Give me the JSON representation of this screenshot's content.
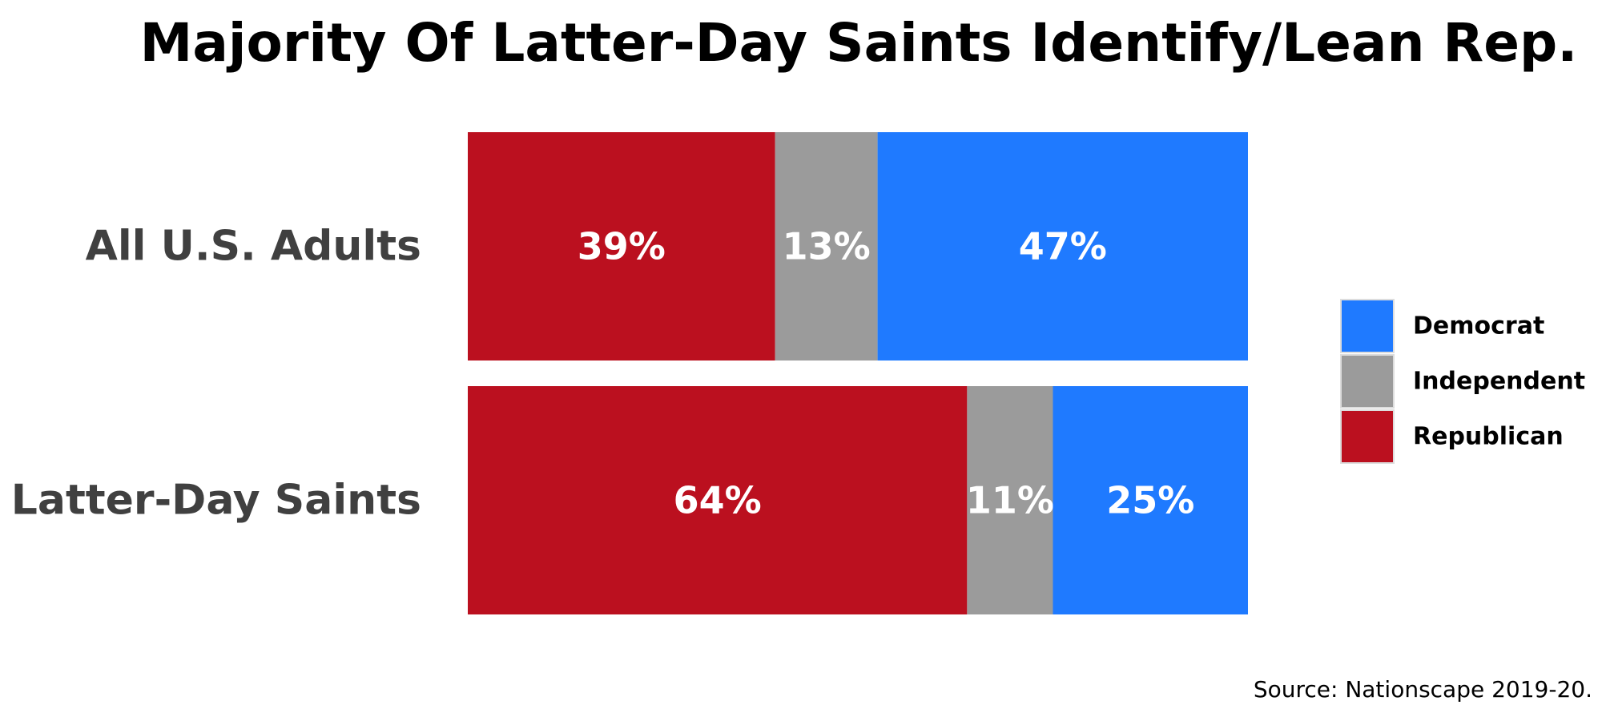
{
  "chart_data": {
    "type": "bar",
    "orientation": "horizontal",
    "stacked": true,
    "title": "Majority Of Latter-Day Saints Identify/Lean Rep.",
    "categories": [
      "All U.S. Adults",
      "Latter-Day Saints"
    ],
    "series": [
      {
        "name": "Republican",
        "color": "#bb101f",
        "values": [
          39,
          64
        ],
        "labels": [
          "39%",
          "64%"
        ]
      },
      {
        "name": "Independent",
        "color": "#9b9b9b",
        "values": [
          13,
          11
        ],
        "labels": [
          "13%",
          "11%"
        ]
      },
      {
        "name": "Democrat",
        "color": "#1f7aff",
        "values": [
          47,
          25
        ],
        "labels": [
          "47%",
          "25%"
        ]
      }
    ],
    "legend": {
      "placement": "right",
      "entries": [
        {
          "name": "Democrat",
          "color": "#1f7aff"
        },
        {
          "name": "Independent",
          "color": "#9b9b9b"
        },
        {
          "name": "Republican",
          "color": "#bb101f"
        }
      ]
    },
    "source": "Source: Nationscape 2019-20.",
    "grid": false,
    "xlabel": "",
    "ylabel": ""
  }
}
